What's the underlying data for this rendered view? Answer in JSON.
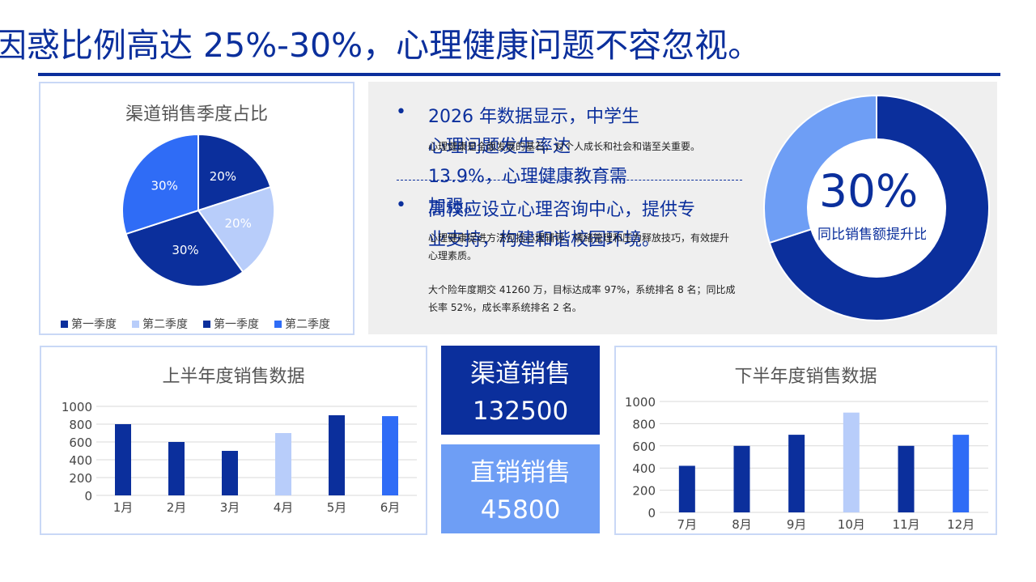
{
  "header": {
    "title": "因惑比例高达 25%-30%，心理健康问题不容忽视。"
  },
  "pie_panel": {
    "title": "渠道销售季度占比"
  },
  "info": {
    "bullet_1": "2026 年数据显示，中学生\n心理问题发生率达\n13.9%，心理健康教育需\n加强。",
    "note_1": "心理健康是全面发展的基石，对个人成长和社会和谐至关重要。",
    "bullet_2": "高校应设立心理咨询中心，提供专\n业支持，构建和谐校园环境。",
    "note_2": "心理健康促进方法包括心理辅导、情绪管理和压力释放技巧，有效提升心理素质。",
    "note_3": "大个险年度期交 41260 万，目标达成率 97%，系统排名 8 名；同比成长率 52%，成长率系统排名 2 名。"
  },
  "donut": {
    "percent_text": "30%",
    "label": "同比销售额提升比"
  },
  "kpi": {
    "channel_label": "渠道销售",
    "channel_value": "132500",
    "direct_label": "直销销售",
    "direct_value": "45800"
  },
  "colors": {
    "dark": "#0b2f9c",
    "light": "#b8cdfa",
    "mid": "#2f6cf6",
    "accent_box": "#6e9ef5"
  },
  "chart_data": [
    {
      "type": "pie",
      "title": "渠道销售季度占比",
      "series": [
        {
          "name": "第一季度",
          "value": 20,
          "label": "20%",
          "color": "#0b2f9c"
        },
        {
          "name": "第二季度",
          "value": 20,
          "label": "20%",
          "color": "#b8cdfa"
        },
        {
          "name": "第一季度",
          "value": 30,
          "label": "30%",
          "color": "#0b2f9c"
        },
        {
          "name": "第二季度",
          "value": 30,
          "label": "30%",
          "color": "#2f6cf6"
        }
      ],
      "legend": "bottom"
    },
    {
      "type": "bar",
      "title": "上半年度销售数据",
      "categories": [
        "1月",
        "2月",
        "3月",
        "4月",
        "5月",
        "6月"
      ],
      "values": [
        800,
        600,
        500,
        700,
        900,
        890
      ],
      "colors": [
        "#0b2f9c",
        "#0b2f9c",
        "#0b2f9c",
        "#b8cdfa",
        "#0b2f9c",
        "#2f6cf6"
      ],
      "ylim": [
        0,
        1000
      ],
      "yticks": [
        0,
        200,
        400,
        600,
        800,
        1000
      ],
      "grid": true
    },
    {
      "type": "bar",
      "title": "下半年度销售数据",
      "categories": [
        "7月",
        "8月",
        "9月",
        "10月",
        "11月",
        "12月"
      ],
      "values": [
        420,
        600,
        700,
        900,
        600,
        700
      ],
      "colors": [
        "#0b2f9c",
        "#0b2f9c",
        "#0b2f9c",
        "#b8cdfa",
        "#0b2f9c",
        "#2f6cf6"
      ],
      "ylim": [
        0,
        1000
      ],
      "yticks": [
        0,
        200,
        400,
        600,
        800,
        1000
      ],
      "grid": true
    },
    {
      "type": "pie",
      "title": "",
      "series": [
        {
          "name": "",
          "value": 70,
          "color": "#0b2f9c"
        },
        {
          "name": "",
          "value": 30,
          "color": "#6e9ef5"
        }
      ]
    }
  ]
}
